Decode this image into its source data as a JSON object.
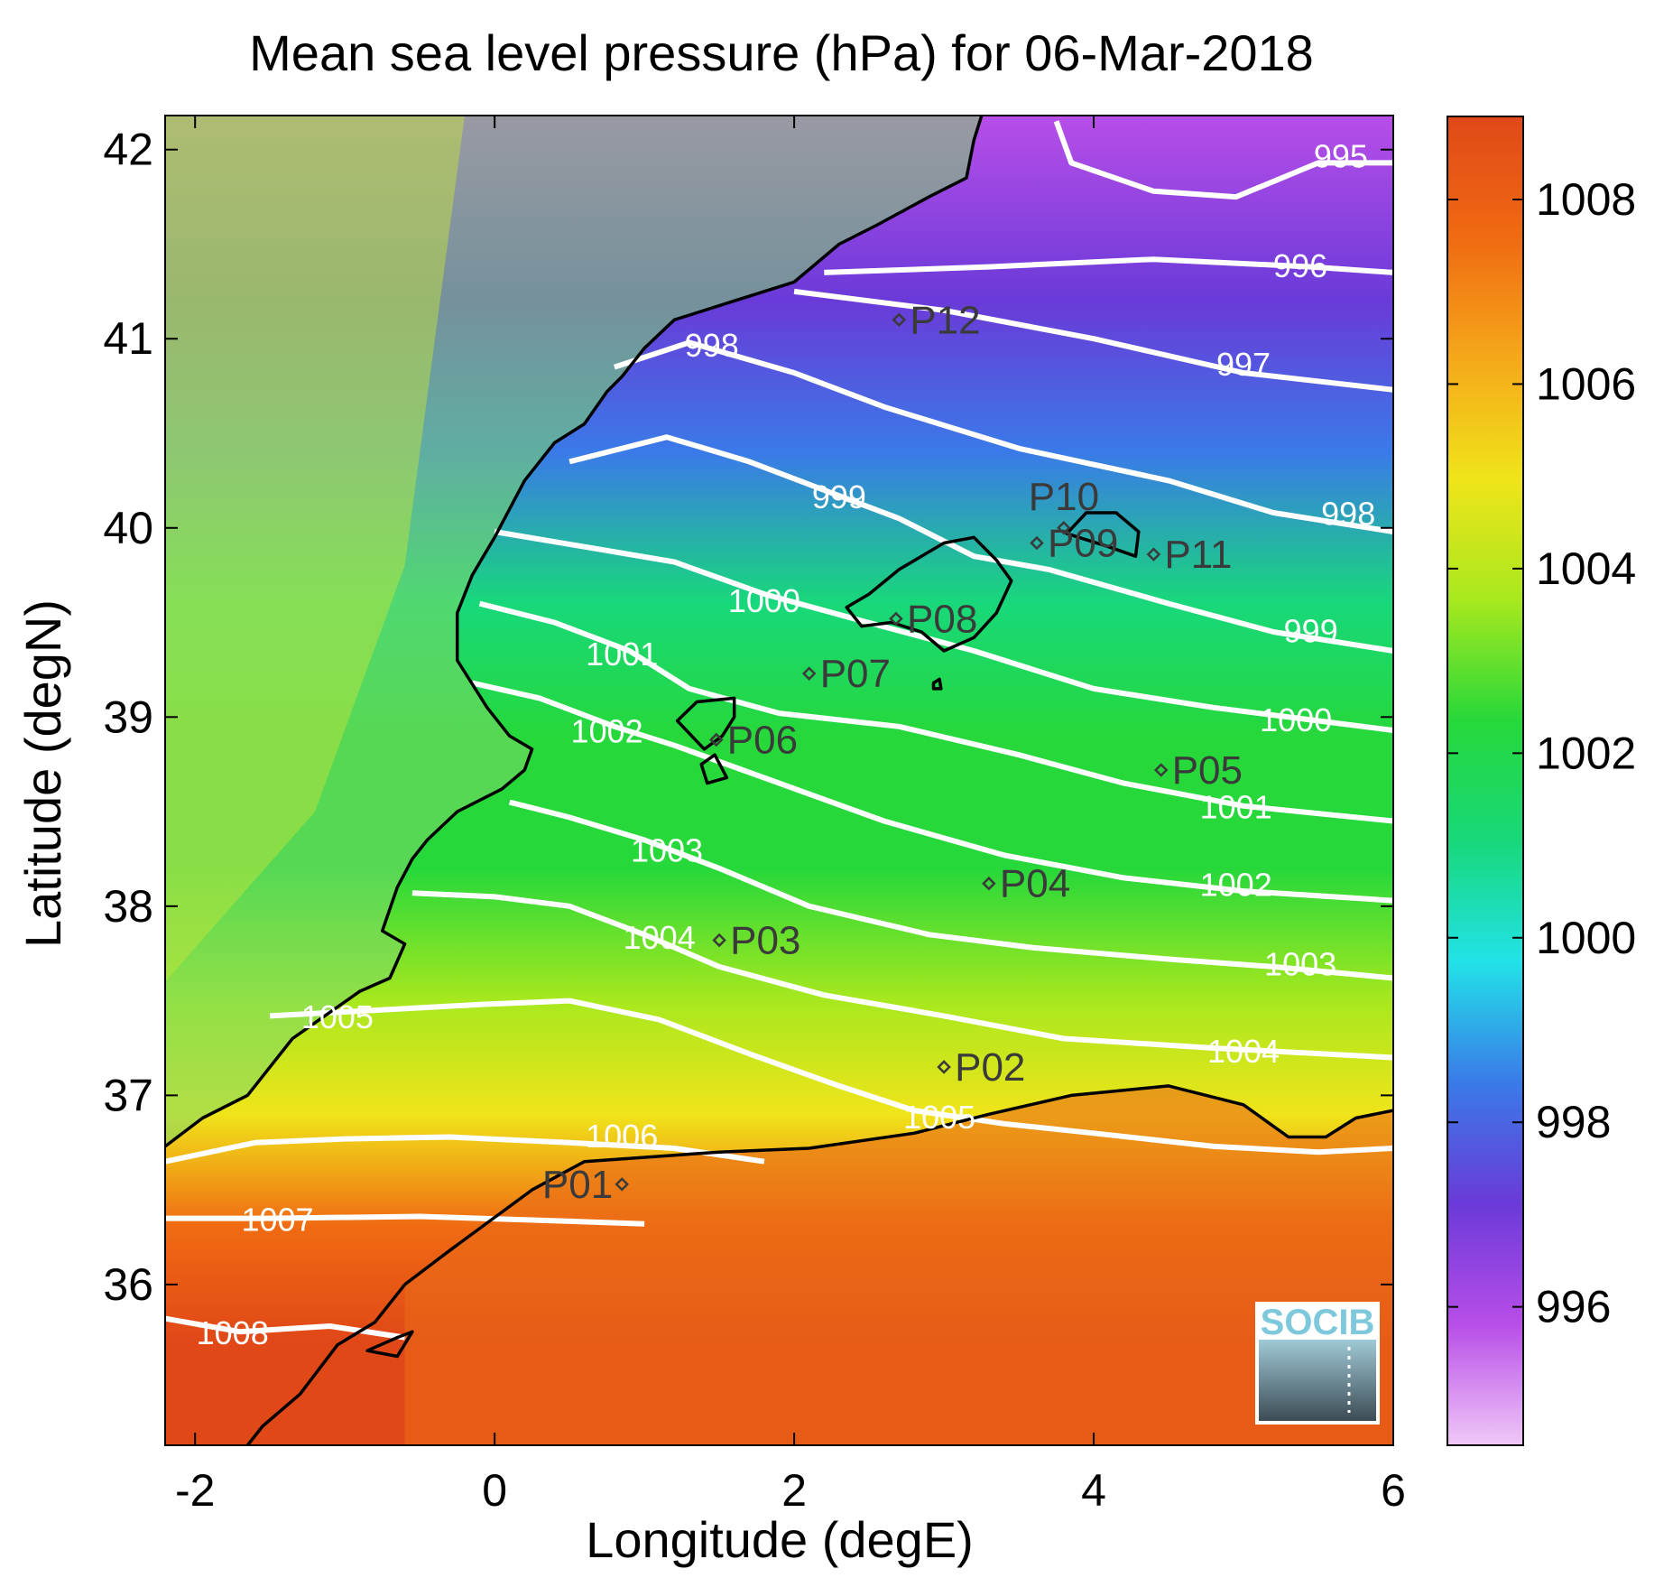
{
  "title": "Mean sea level pressure (hPa) for 06-Mar-2018",
  "xlabel": "Longitude (degE)",
  "ylabel": "Latitude (degN)",
  "x_ticks": [
    {
      "value": -2,
      "label": "-2"
    },
    {
      "value": 0,
      "label": "0"
    },
    {
      "value": 2,
      "label": "2"
    },
    {
      "value": 4,
      "label": "4"
    },
    {
      "value": 6,
      "label": "6"
    }
  ],
  "y_ticks": [
    {
      "value": 36,
      "label": "36"
    },
    {
      "value": 37,
      "label": "37"
    },
    {
      "value": 38,
      "label": "38"
    },
    {
      "value": 39,
      "label": "39"
    },
    {
      "value": 40,
      "label": "40"
    },
    {
      "value": 41,
      "label": "41"
    },
    {
      "value": 42,
      "label": "42"
    }
  ],
  "colorbar": {
    "range": [
      994.5,
      1008.9
    ],
    "ticks": [
      {
        "value": 996,
        "label": "996"
      },
      {
        "value": 998,
        "label": "998"
      },
      {
        "value": 1000,
        "label": "1000"
      },
      {
        "value": 1002,
        "label": "1002"
      },
      {
        "value": 1004,
        "label": "1004"
      },
      {
        "value": 1006,
        "label": "1006"
      },
      {
        "value": 1008,
        "label": "1008"
      }
    ],
    "colors": [
      "#f0c8f8",
      "#b84ee8",
      "#6a3ad8",
      "#3a7ae8",
      "#22e2e8",
      "#18d87a",
      "#26d83a",
      "#a8e81e",
      "#f0e41a",
      "#f5a81a",
      "#f06a12",
      "#e04818"
    ]
  },
  "stations": [
    {
      "id": "P01",
      "lon": 0.85,
      "lat": 36.53
    },
    {
      "id": "P02",
      "lon": 3.0,
      "lat": 37.15
    },
    {
      "id": "P03",
      "lon": 1.5,
      "lat": 37.82
    },
    {
      "id": "P04",
      "lon": 3.3,
      "lat": 38.12
    },
    {
      "id": "P05",
      "lon": 4.45,
      "lat": 38.72
    },
    {
      "id": "P06",
      "lon": 1.48,
      "lat": 38.88
    },
    {
      "id": "P07",
      "lon": 2.1,
      "lat": 39.23
    },
    {
      "id": "P08",
      "lon": 2.68,
      "lat": 39.52
    },
    {
      "id": "P09",
      "lon": 3.62,
      "lat": 39.92
    },
    {
      "id": "P10",
      "lon": 3.8,
      "lat": 40.0
    },
    {
      "id": "P11",
      "lon": 4.4,
      "lat": 39.86
    },
    {
      "id": "P12",
      "lon": 2.7,
      "lat": 41.1
    }
  ],
  "contour_labels": [
    {
      "label": "995",
      "lon": 5.65,
      "lat": 41.95
    },
    {
      "label": "996",
      "lon": 5.38,
      "lat": 41.37
    },
    {
      "label": "997",
      "lon": 5.0,
      "lat": 40.85
    },
    {
      "label": "998",
      "lon": 1.45,
      "lat": 40.95
    },
    {
      "label": "998",
      "lon": 5.7,
      "lat": 40.06
    },
    {
      "label": "999",
      "lon": 2.3,
      "lat": 40.15
    },
    {
      "label": "999",
      "lon": 5.45,
      "lat": 39.44
    },
    {
      "label": "1000",
      "lon": 1.8,
      "lat": 39.6
    },
    {
      "label": "1000",
      "lon": 5.35,
      "lat": 38.97
    },
    {
      "label": "1001",
      "lon": 0.85,
      "lat": 39.32
    },
    {
      "label": "1001",
      "lon": 4.95,
      "lat": 38.51
    },
    {
      "label": "1002",
      "lon": 0.75,
      "lat": 38.91
    },
    {
      "label": "1002",
      "lon": 4.95,
      "lat": 38.1
    },
    {
      "label": "1003",
      "lon": 1.15,
      "lat": 38.28
    },
    {
      "label": "1003",
      "lon": 5.38,
      "lat": 37.68
    },
    {
      "label": "1004",
      "lon": 1.1,
      "lat": 37.82
    },
    {
      "label": "1004",
      "lon": 5.0,
      "lat": 37.22
    },
    {
      "label": "1005",
      "lon": -1.05,
      "lat": 37.4
    },
    {
      "label": "1005",
      "lon": 2.97,
      "lat": 36.87
    },
    {
      "label": "1006",
      "lon": 0.85,
      "lat": 36.77
    },
    {
      "label": "1007",
      "lon": -1.45,
      "lat": 36.33
    },
    {
      "label": "1008",
      "lon": -1.75,
      "lat": 35.73
    }
  ],
  "contours": [
    {
      "level": 995,
      "points": [
        [
          3.75,
          42.15
        ],
        [
          3.85,
          41.93
        ],
        [
          4.4,
          41.78
        ],
        [
          4.95,
          41.75
        ],
        [
          5.5,
          41.93
        ],
        [
          6.0,
          41.93
        ]
      ]
    },
    {
      "level": 996,
      "points": [
        [
          2.2,
          41.35
        ],
        [
          3.3,
          41.38
        ],
        [
          4.4,
          41.42
        ],
        [
          5.45,
          41.38
        ],
        [
          6.0,
          41.35
        ]
      ]
    },
    {
      "level": 997,
      "points": [
        [
          2.0,
          41.25
        ],
        [
          3.0,
          41.15
        ],
        [
          4.0,
          41.0
        ],
        [
          5.0,
          40.82
        ],
        [
          6.0,
          40.73
        ]
      ]
    },
    {
      "level": 998,
      "points": [
        [
          0.8,
          40.85
        ],
        [
          1.3,
          40.98
        ],
        [
          2.0,
          40.82
        ],
        [
          2.6,
          40.64
        ],
        [
          3.5,
          40.42
        ],
        [
          4.5,
          40.25
        ],
        [
          5.2,
          40.08
        ],
        [
          6.0,
          39.98
        ]
      ]
    },
    {
      "level": 999,
      "points": [
        [
          0.5,
          40.35
        ],
        [
          1.15,
          40.48
        ],
        [
          1.7,
          40.35
        ],
        [
          2.2,
          40.2
        ],
        [
          2.7,
          40.05
        ],
        [
          3.2,
          39.85
        ],
        [
          3.7,
          39.78
        ],
        [
          4.5,
          39.6
        ],
        [
          5.2,
          39.45
        ],
        [
          6.0,
          39.35
        ]
      ]
    },
    {
      "level": 1000,
      "points": [
        [
          0.0,
          39.98
        ],
        [
          0.6,
          39.9
        ],
        [
          1.2,
          39.82
        ],
        [
          1.8,
          39.65
        ],
        [
          2.4,
          39.52
        ],
        [
          3.2,
          39.35
        ],
        [
          4.0,
          39.15
        ],
        [
          4.8,
          39.05
        ],
        [
          5.5,
          38.98
        ],
        [
          6.0,
          38.93
        ]
      ]
    },
    {
      "level": 1001,
      "points": [
        [
          -0.1,
          39.6
        ],
        [
          0.4,
          39.5
        ],
        [
          0.9,
          39.35
        ],
        [
          1.3,
          39.15
        ],
        [
          1.9,
          39.02
        ],
        [
          2.7,
          38.95
        ],
        [
          3.5,
          38.8
        ],
        [
          4.2,
          38.65
        ],
        [
          5.0,
          38.53
        ],
        [
          6.0,
          38.45
        ]
      ]
    },
    {
      "level": 1002,
      "points": [
        [
          -0.15,
          39.18
        ],
        [
          0.3,
          39.1
        ],
        [
          0.8,
          38.95
        ],
        [
          1.2,
          38.85
        ],
        [
          1.9,
          38.65
        ],
        [
          2.6,
          38.45
        ],
        [
          3.4,
          38.27
        ],
        [
          4.2,
          38.15
        ],
        [
          5.0,
          38.08
        ],
        [
          6.0,
          38.03
        ]
      ]
    },
    {
      "level": 1003,
      "points": [
        [
          0.1,
          38.55
        ],
        [
          0.5,
          38.47
        ],
        [
          1.0,
          38.35
        ],
        [
          1.5,
          38.2
        ],
        [
          2.1,
          38.0
        ],
        [
          2.9,
          37.85
        ],
        [
          3.6,
          37.78
        ],
        [
          4.5,
          37.72
        ],
        [
          5.2,
          37.68
        ],
        [
          6.0,
          37.62
        ]
      ]
    },
    {
      "level": 1004,
      "points": [
        [
          -0.55,
          38.07
        ],
        [
          0.0,
          38.05
        ],
        [
          0.5,
          38.0
        ],
        [
          1.0,
          37.85
        ],
        [
          1.5,
          37.68
        ],
        [
          2.2,
          37.53
        ],
        [
          3.0,
          37.42
        ],
        [
          3.8,
          37.3
        ],
        [
          4.8,
          37.25
        ],
        [
          6.0,
          37.2
        ]
      ]
    },
    {
      "level": 1005,
      "points": [
        [
          -1.5,
          37.42
        ],
        [
          -0.8,
          37.45
        ],
        [
          -0.1,
          37.48
        ],
        [
          0.5,
          37.5
        ],
        [
          1.1,
          37.4
        ],
        [
          1.7,
          37.22
        ],
        [
          2.3,
          37.05
        ],
        [
          2.8,
          36.92
        ],
        [
          3.4,
          36.85
        ],
        [
          4.0,
          36.8
        ],
        [
          4.8,
          36.73
        ],
        [
          5.5,
          36.7
        ],
        [
          6.0,
          36.72
        ]
      ]
    },
    {
      "level": 1006,
      "points": [
        [
          -2.2,
          36.65
        ],
        [
          -1.6,
          36.75
        ],
        [
          -1.0,
          36.77
        ],
        [
          -0.3,
          36.78
        ],
        [
          0.5,
          36.75
        ],
        [
          1.2,
          36.72
        ],
        [
          1.8,
          36.65
        ]
      ]
    },
    {
      "level": 1007,
      "points": [
        [
          -2.2,
          36.35
        ],
        [
          -1.5,
          36.35
        ],
        [
          -0.5,
          36.36
        ],
        [
          0.3,
          36.34
        ],
        [
          1.0,
          36.32
        ]
      ]
    },
    {
      "level": 1008,
      "points": [
        [
          -2.2,
          35.82
        ],
        [
          -1.7,
          35.75
        ],
        [
          -1.1,
          35.78
        ],
        [
          -0.6,
          35.72
        ]
      ]
    }
  ],
  "coastlines": [
    [
      [
        -2.2,
        36.73
      ],
      [
        -1.95,
        36.88
      ],
      [
        -1.65,
        37.0
      ],
      [
        -1.35,
        37.3
      ],
      [
        -0.9,
        37.55
      ],
      [
        -0.7,
        37.62
      ],
      [
        -0.6,
        37.8
      ],
      [
        -0.75,
        37.87
      ],
      [
        -0.65,
        38.1
      ],
      [
        -0.55,
        38.25
      ],
      [
        -0.45,
        38.35
      ],
      [
        -0.25,
        38.5
      ],
      [
        0.05,
        38.62
      ],
      [
        0.2,
        38.72
      ],
      [
        0.25,
        38.83
      ],
      [
        0.1,
        38.9
      ],
      [
        -0.05,
        39.05
      ],
      [
        -0.25,
        39.3
      ],
      [
        -0.25,
        39.55
      ],
      [
        -0.15,
        39.75
      ],
      [
        0.0,
        39.95
      ],
      [
        0.2,
        40.25
      ],
      [
        0.4,
        40.45
      ],
      [
        0.6,
        40.55
      ],
      [
        0.75,
        40.72
      ],
      [
        0.85,
        40.8
      ],
      [
        1.0,
        40.95
      ],
      [
        1.2,
        41.1
      ],
      [
        1.6,
        41.2
      ],
      [
        2.0,
        41.3
      ],
      [
        2.3,
        41.5
      ],
      [
        2.55,
        41.6
      ],
      [
        2.9,
        41.75
      ],
      [
        3.15,
        41.85
      ],
      [
        3.2,
        42.05
      ],
      [
        3.28,
        42.25
      ]
    ],
    [
      [
        -0.6,
        36.0
      ],
      [
        -0.8,
        35.8
      ],
      [
        -1.05,
        35.68
      ],
      [
        -1.3,
        35.42
      ],
      [
        -1.55,
        35.25
      ],
      [
        -1.75,
        35.05
      ]
    ],
    [
      [
        -0.6,
        36.0
      ],
      [
        -0.3,
        36.18
      ],
      [
        0.25,
        36.5
      ],
      [
        0.6,
        36.65
      ],
      [
        1.5,
        36.7
      ],
      [
        2.1,
        36.72
      ],
      [
        2.8,
        36.8
      ],
      [
        3.3,
        36.9
      ],
      [
        3.85,
        37.0
      ],
      [
        4.5,
        37.05
      ],
      [
        5.0,
        36.95
      ],
      [
        5.3,
        36.78
      ],
      [
        5.55,
        36.78
      ],
      [
        5.75,
        36.88
      ],
      [
        6.0,
        36.92
      ]
    ]
  ],
  "islands": [
    [
      [
        2.35,
        39.58
      ],
      [
        2.5,
        39.65
      ],
      [
        2.7,
        39.78
      ],
      [
        3.0,
        39.92
      ],
      [
        3.2,
        39.95
      ],
      [
        3.35,
        39.83
      ],
      [
        3.45,
        39.72
      ],
      [
        3.35,
        39.55
      ],
      [
        3.2,
        39.42
      ],
      [
        3.0,
        39.35
      ],
      [
        2.85,
        39.45
      ],
      [
        2.65,
        39.5
      ],
      [
        2.45,
        39.48
      ],
      [
        2.35,
        39.58
      ]
    ],
    [
      [
        3.82,
        39.97
      ],
      [
        3.95,
        40.08
      ],
      [
        4.15,
        40.08
      ],
      [
        4.3,
        39.98
      ],
      [
        4.28,
        39.85
      ],
      [
        4.1,
        39.9
      ],
      [
        3.9,
        39.95
      ],
      [
        3.82,
        39.97
      ]
    ],
    [
      [
        1.22,
        38.98
      ],
      [
        1.35,
        39.08
      ],
      [
        1.6,
        39.1
      ],
      [
        1.6,
        39.0
      ],
      [
        1.52,
        38.9
      ],
      [
        1.4,
        38.83
      ],
      [
        1.22,
        38.98
      ]
    ],
    [
      [
        1.38,
        38.75
      ],
      [
        1.47,
        38.8
      ],
      [
        1.55,
        38.68
      ],
      [
        1.42,
        38.65
      ],
      [
        1.38,
        38.75
      ]
    ],
    [
      [
        -0.85,
        35.65
      ],
      [
        -0.65,
        35.72
      ],
      [
        -0.55,
        35.75
      ],
      [
        -0.65,
        35.62
      ],
      [
        -0.85,
        35.65
      ]
    ],
    [
      [
        2.93,
        39.18
      ],
      [
        2.97,
        39.2
      ],
      [
        2.98,
        39.15
      ],
      [
        2.93,
        39.15
      ],
      [
        2.93,
        39.18
      ]
    ]
  ],
  "logo": {
    "text": "SOCIB"
  }
}
